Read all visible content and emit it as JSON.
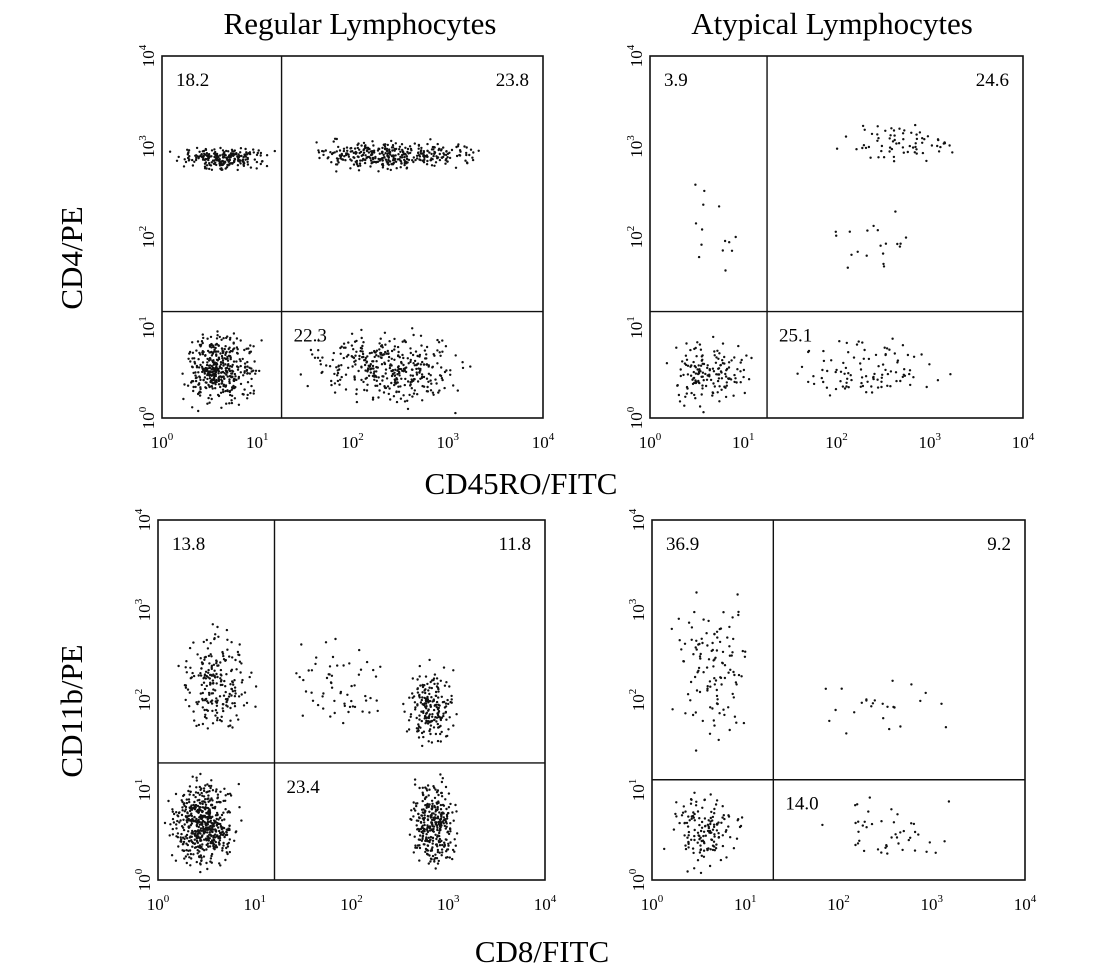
{
  "column_titles": [
    "Regular Lymphocytes",
    "Atypical Lymphocytes"
  ],
  "axis_titles": {
    "row1_y": "CD4/PE",
    "row1_x": "CD45RO/FITC",
    "row2_y": "CD11b/PE",
    "row2_x": "CD8/FITC"
  },
  "tick_base": "10",
  "tick_exponents": [
    "0",
    "1",
    "2",
    "3",
    "4"
  ],
  "chart_data": [
    {
      "type": "scatter",
      "name": "CD45RO-CD4-regular",
      "column": "Regular Lymphocytes",
      "xlabel": "CD45RO/FITC",
      "ylabel": "CD4/PE",
      "xscale": "log",
      "yscale": "log",
      "xlim": [
        1,
        10000
      ],
      "ylim": [
        1,
        10000
      ],
      "quadrant_gate": {
        "x": 18,
        "y": 15
      },
      "quadrant_percentages": {
        "upper_left": "18.2",
        "upper_right": "23.8",
        "lower_left": "",
        "lower_right": "22.3"
      },
      "point_clusters": [
        {
          "x": [
            1,
            18
          ],
          "y": [
            500,
            1100
          ],
          "n": 240
        },
        {
          "x": [
            20,
            4000
          ],
          "y": [
            500,
            1300
          ],
          "n": 380
        },
        {
          "x": [
            1.3,
            12
          ],
          "y": [
            1,
            12
          ],
          "n": 420
        },
        {
          "x": [
            22,
            2500
          ],
          "y": [
            1,
            12
          ],
          "n": 380
        }
      ]
    },
    {
      "type": "scatter",
      "name": "CD45RO-CD4-atypical",
      "column": "Atypical Lymphocytes",
      "xlabel": "CD45RO/FITC",
      "ylabel": "CD4/PE",
      "xscale": "log",
      "yscale": "log",
      "xlim": [
        1,
        10000
      ],
      "ylim": [
        1,
        10000
      ],
      "quadrant_gate": {
        "x": 18,
        "y": 15
      },
      "quadrant_percentages": {
        "upper_left": "3.9",
        "upper_right": "24.6",
        "lower_left": "",
        "lower_right": "25.1"
      },
      "point_clusters": [
        {
          "x": [
            1.2,
            15
          ],
          "y": [
            20,
            900
          ],
          "n": 14
        },
        {
          "x": [
            80,
            3500
          ],
          "y": [
            600,
            2000
          ],
          "n": 70
        },
        {
          "x": [
            25,
            1500
          ],
          "y": [
            25,
            300
          ],
          "n": 20
        },
        {
          "x": [
            1.2,
            15
          ],
          "y": [
            1,
            10
          ],
          "n": 160
        },
        {
          "x": [
            20,
            2500
          ],
          "y": [
            1,
            10
          ],
          "n": 100
        }
      ]
    },
    {
      "type": "scatter",
      "name": "CD8-CD11b-regular",
      "column": "Regular Lymphocytes",
      "xlabel": "CD8/FITC",
      "ylabel": "CD11b/PE",
      "xscale": "log",
      "yscale": "log",
      "xlim": [
        1,
        10000
      ],
      "ylim": [
        1,
        10000
      ],
      "quadrant_gate": {
        "x": 16,
        "y": 20
      },
      "quadrant_percentages": {
        "upper_left": "13.8",
        "upper_right": "11.8",
        "lower_left": "",
        "lower_right": "23.4"
      },
      "point_clusters": [
        {
          "x": [
            1.3,
            12
          ],
          "y": [
            25,
            1000
          ],
          "n": 220
        },
        {
          "x": [
            20,
            300
          ],
          "y": [
            30,
            600
          ],
          "n": 60
        },
        {
          "x": [
            300,
            1500
          ],
          "y": [
            25,
            300
          ],
          "n": 200
        },
        {
          "x": [
            1.1,
            8
          ],
          "y": [
            1,
            18
          ],
          "n": 560
        },
        {
          "x": [
            350,
            1400
          ],
          "y": [
            1,
            18
          ],
          "n": 330
        }
      ]
    },
    {
      "type": "scatter",
      "name": "CD8-CD11b-atypical",
      "column": "Atypical Lymphocytes",
      "xlabel": "CD8/FITC",
      "ylabel": "CD11b/PE",
      "xscale": "log",
      "yscale": "log",
      "xlim": [
        1,
        10000
      ],
      "ylim": [
        1,
        10000
      ],
      "quadrant_gate": {
        "x": 20,
        "y": 13
      },
      "quadrant_percentages": {
        "upper_left": "36.9",
        "upper_right": "9.2",
        "lower_left": "",
        "lower_right": "14.0"
      },
      "point_clusters": [
        {
          "x": [
            1.3,
            15
          ],
          "y": [
            15,
            3000
          ],
          "n": 120
        },
        {
          "x": [
            25,
            3000
          ],
          "y": [
            20,
            300
          ],
          "n": 25
        },
        {
          "x": [
            1.2,
            12
          ],
          "y": [
            1,
            11
          ],
          "n": 150
        },
        {
          "x": [
            50,
            2500
          ],
          "y": [
            1,
            11
          ],
          "n": 45
        }
      ]
    }
  ]
}
